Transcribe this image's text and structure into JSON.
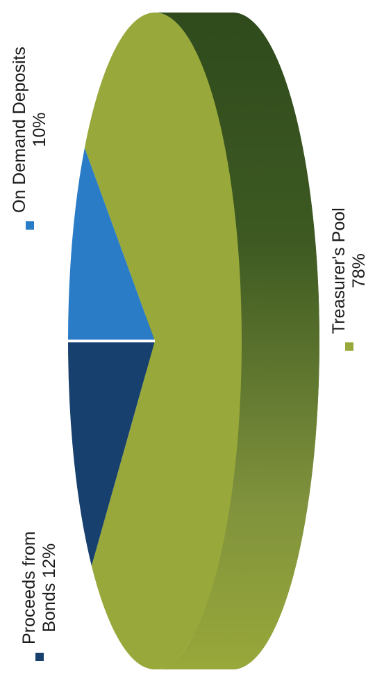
{
  "chart_data": {
    "type": "pie",
    "title": "",
    "slices": [
      {
        "label": "On Demand Deposits",
        "value": 10,
        "value_label": "10%",
        "color": "#2a7cc7"
      },
      {
        "label": "Proceeds from Bonds",
        "value": 12,
        "value_label": "12%",
        "color": "#17406e"
      },
      {
        "label": "Treasurer's Pool",
        "value": 78,
        "value_label": "78%",
        "color": "#98a83a"
      }
    ],
    "legend": {
      "placement": "around",
      "ondemand_line1": "On Demand Deposits",
      "ondemand_line2": "10%",
      "proceeds_line1": "Proceeds from",
      "proceeds_line2": "Bonds 12%",
      "treasurer_line1": "Treasurer's Pool",
      "treasurer_line2": "78%"
    },
    "style": "3d",
    "orientation": "rotated-90-ccw",
    "colors": {
      "ondemand": "#2a7cc7",
      "proceeds": "#17406e",
      "treasurer": "#98a83a",
      "treasurer_side": "#3a5221"
    }
  }
}
